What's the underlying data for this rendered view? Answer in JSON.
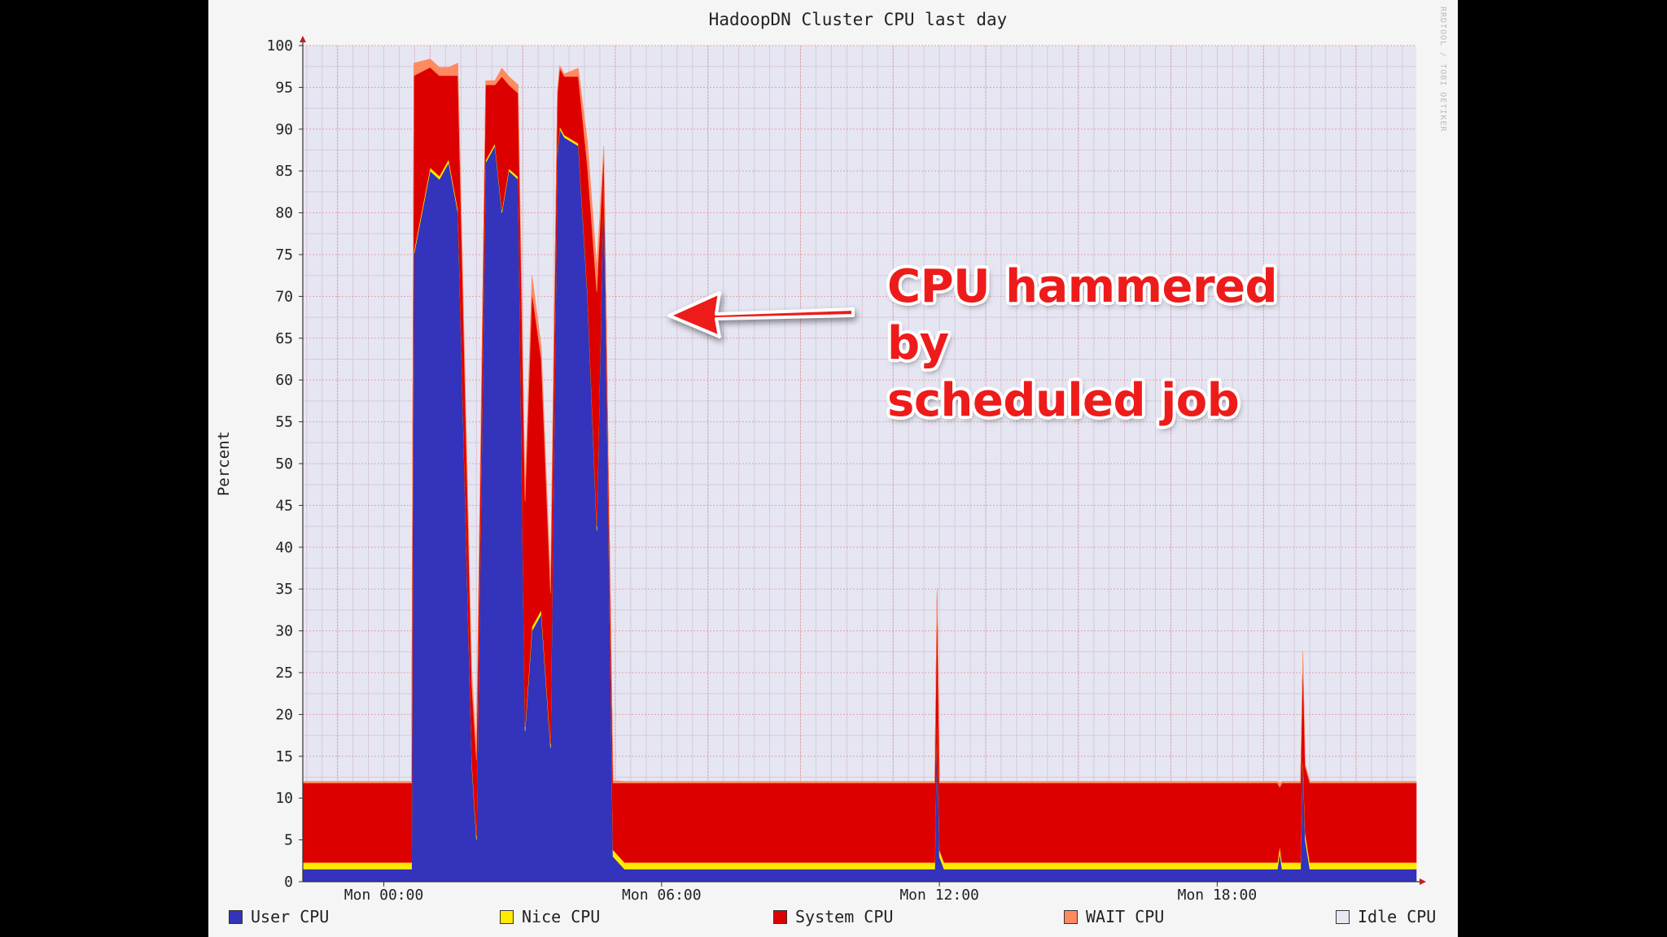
{
  "chart_data": {
    "type": "area",
    "title": "HadoopDN Cluster CPU last day",
    "ylabel": "Percent",
    "ylim": [
      0,
      100
    ],
    "yticks": [
      0,
      5,
      10,
      15,
      20,
      25,
      30,
      35,
      40,
      45,
      50,
      55,
      60,
      65,
      70,
      75,
      80,
      85,
      90,
      95,
      100
    ],
    "xticks": [
      {
        "label": "Mon 00:00",
        "hour": 0
      },
      {
        "label": "Mon 06:00",
        "hour": 6
      },
      {
        "label": "Mon 12:00",
        "hour": 12
      },
      {
        "label": "Mon 18:00",
        "hour": 18
      }
    ],
    "xlim_hours": [
      -1.75,
      22.3
    ],
    "series": [
      {
        "name": "User CPU",
        "color": "#3333bb"
      },
      {
        "name": "Nice CPU",
        "color": "#ffea00"
      },
      {
        "name": "System CPU",
        "color": "#dd0000"
      },
      {
        "name": "WAIT CPU",
        "color": "#ff8a60"
      },
      {
        "name": "Idle CPU",
        "color": "#e2e2f2"
      }
    ],
    "hours": [
      -1.75,
      0.6,
      0.65,
      1.0,
      1.2,
      1.4,
      1.6,
      1.9,
      2.0,
      2.2,
      2.4,
      2.55,
      2.7,
      2.9,
      3.05,
      3.2,
      3.4,
      3.6,
      3.75,
      3.8,
      3.9,
      4.2,
      4.4,
      4.6,
      4.75,
      4.95,
      5.2,
      5.25,
      6.0,
      11.9,
      11.95,
      12.0,
      12.1,
      12.2,
      19.3,
      19.35,
      19.4,
      19.8,
      19.85,
      19.9,
      20.0,
      20.1,
      22.3
    ],
    "user": [
      1.5,
      1.5,
      75,
      85,
      84,
      86,
      80,
      14,
      5,
      86,
      88,
      80,
      85,
      84,
      18,
      30,
      32,
      16,
      87,
      90,
      89,
      88,
      70,
      42,
      85,
      3,
      1.5,
      1.5,
      1.5,
      1.5,
      20,
      3,
      1.5,
      1.5,
      1.5,
      3.5,
      1.5,
      1.5,
      15,
      5,
      1.5,
      1.5,
      1.5
    ],
    "nice": [
      0.8,
      0.8,
      0.4,
      0.4,
      0.4,
      0.4,
      0.4,
      0.5,
      0.5,
      0.3,
      0.3,
      0.3,
      0.3,
      0.3,
      0.5,
      0.5,
      0.5,
      0.5,
      0.3,
      0.3,
      0.3,
      0.3,
      0.4,
      0.5,
      0.5,
      0.8,
      0.8,
      0.8,
      0.8,
      0.8,
      0.6,
      0.8,
      0.8,
      0.8,
      0.8,
      0.8,
      0.8,
      0.8,
      0.6,
      0.8,
      0.8,
      0.8,
      0.8
    ],
    "system": [
      9.5,
      9.5,
      21,
      12,
      12,
      10,
      16,
      9,
      9,
      9,
      7,
      16,
      10,
      10,
      27,
      40,
      30,
      18,
      7,
      7,
      7,
      8,
      15,
      28,
      2,
      8,
      9.5,
      9.5,
      9.5,
      9.5,
      14,
      8,
      9.5,
      9.5,
      9.5,
      7,
      9.5,
      9.5,
      11,
      8,
      9.5,
      9.5,
      9.5
    ],
    "wait": [
      0.2,
      0.2,
      1.5,
      1,
      1,
      1,
      1.5,
      1.5,
      1.5,
      0.5,
      0.5,
      1,
      1,
      1,
      1.5,
      2,
      1.5,
      1.5,
      0.3,
      0.3,
      0.3,
      1,
      3,
      3,
      0.5,
      0.3,
      0.2,
      0.2,
      0.2,
      0.2,
      0.5,
      0.2,
      0.2,
      0.2,
      0.2,
      0.5,
      0.2,
      0.2,
      1,
      0.3,
      0.2,
      0.2,
      0.2
    ]
  },
  "annotation": {
    "text_line1": "CPU hammered by",
    "text_line2": "scheduled job"
  },
  "watermark": "RRDTOOL / TOBI OETIKER",
  "legend": [
    {
      "label": "User CPU",
      "color": "#3333bb"
    },
    {
      "label": "Nice CPU",
      "color": "#ffea00"
    },
    {
      "label": "System CPU",
      "color": "#dd0000"
    },
    {
      "label": "WAIT CPU",
      "color": "#ff8a60"
    },
    {
      "label": "Idle CPU",
      "color": "#e8e8f4"
    }
  ]
}
